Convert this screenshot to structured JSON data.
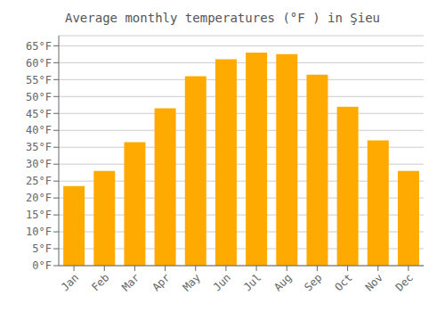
{
  "chart_data": {
    "type": "bar",
    "title": "Average monthly temperatures (°F ) in Şieu",
    "categories": [
      "Jan",
      "Feb",
      "Mar",
      "Apr",
      "May",
      "Jun",
      "Jul",
      "Aug",
      "Sep",
      "Oct",
      "Nov",
      "Dec"
    ],
    "values": [
      23.5,
      28.0,
      36.5,
      46.5,
      56.0,
      61.0,
      63.0,
      62.5,
      56.5,
      47.0,
      37.0,
      28.0
    ],
    "color": "#FFAA00",
    "ylim": [
      0,
      68
    ],
    "yticks": [
      {
        "value": 0,
        "label": "0°F"
      },
      {
        "value": 5,
        "label": "5°F"
      },
      {
        "value": 10,
        "label": "10°F"
      },
      {
        "value": 15,
        "label": "15°F"
      },
      {
        "value": 20,
        "label": "20°F"
      },
      {
        "value": 25,
        "label": "25°F"
      },
      {
        "value": 30,
        "label": "30°F"
      },
      {
        "value": 35,
        "label": "35°F"
      },
      {
        "value": 40,
        "label": "40°F"
      },
      {
        "value": 45,
        "label": "45°F"
      },
      {
        "value": 50,
        "label": "50°F"
      },
      {
        "value": 55,
        "label": "55°F"
      },
      {
        "value": 60,
        "label": "60°F"
      },
      {
        "value": 65,
        "label": "65°F"
      }
    ],
    "grid": true
  }
}
